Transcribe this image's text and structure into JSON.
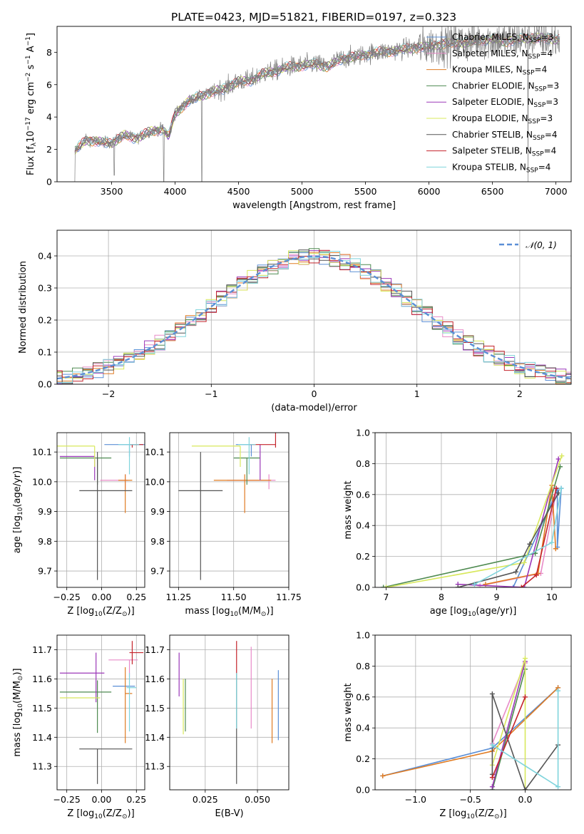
{
  "figure": {
    "title": "PLATE=0423, MJD=51821, FIBERID=0197, z=0.323",
    "models": [
      {
        "imf": "Chabrier",
        "lib": "MILES",
        "nssp": 3,
        "color": "#5b8fd6"
      },
      {
        "imf": "Salpeter",
        "lib": "MILES",
        "nssp": 4,
        "color": "#e88bc8"
      },
      {
        "imf": "Kroupa",
        "lib": "MILES",
        "nssp": 4,
        "color": "#e07b22"
      },
      {
        "imf": "Chabrier",
        "lib": "ELODIE",
        "nssp": 3,
        "color": "#4e8a50"
      },
      {
        "imf": "Salpeter",
        "lib": "ELODIE",
        "nssp": 3,
        "color": "#9b38b8"
      },
      {
        "imf": "Kroupa",
        "lib": "ELODIE",
        "nssp": 3,
        "color": "#d8e85c"
      },
      {
        "imf": "Chabrier",
        "lib": "STELIB",
        "nssp": 4,
        "color": "#555555"
      },
      {
        "imf": "Salpeter",
        "lib": "STELIB",
        "nssp": 4,
        "color": "#c4232b"
      },
      {
        "imf": "Kroupa",
        "lib": "STELIB",
        "nssp": 4,
        "color": "#7fd4dc"
      }
    ],
    "data_color": "#808080",
    "nssp_label": "N",
    "nssp_sub": "SSP"
  },
  "chart_data": [
    {
      "id": "spectrum",
      "type": "line",
      "xlabel": "wavelength [Angstrom, rest frame]",
      "ylabel_parts": [
        "Flux [f",
        "λ",
        "10",
        "−17",
        " erg cm",
        "−2",
        " s",
        "−1",
        " A",
        "−1",
        "]"
      ],
      "xlim": [
        3070,
        7120
      ],
      "ylim": [
        0,
        9.6
      ],
      "xticks": [
        3500,
        4000,
        4500,
        5000,
        5500,
        6000,
        6500,
        7000
      ],
      "yticks": [
        0,
        2,
        4,
        6,
        8
      ],
      "continuum": [
        [
          3210,
          1.9
        ],
        [
          3300,
          2.6
        ],
        [
          3400,
          2.5
        ],
        [
          3500,
          2.4
        ],
        [
          3600,
          2.9
        ],
        [
          3700,
          2.7
        ],
        [
          3800,
          3.1
        ],
        [
          3900,
          3.3
        ],
        [
          3950,
          2.8
        ],
        [
          4000,
          4.2
        ],
        [
          4100,
          5.0
        ],
        [
          4200,
          5.3
        ],
        [
          4300,
          5.6
        ],
        [
          4400,
          5.8
        ],
        [
          4500,
          6.2
        ],
        [
          4600,
          6.3
        ],
        [
          4700,
          6.7
        ],
        [
          4800,
          6.9
        ],
        [
          4900,
          7.1
        ],
        [
          5000,
          7.2
        ],
        [
          5100,
          7.3
        ],
        [
          5200,
          7.1
        ],
        [
          5300,
          7.6
        ],
        [
          5400,
          7.7
        ],
        [
          5500,
          7.9
        ],
        [
          5600,
          8.0
        ],
        [
          5700,
          8.1
        ],
        [
          5800,
          8.2
        ],
        [
          5900,
          8.3
        ],
        [
          6000,
          8.4
        ],
        [
          6100,
          8.5
        ],
        [
          6200,
          8.6
        ],
        [
          6300,
          8.6
        ],
        [
          6400,
          8.8
        ],
        [
          6500,
          8.8
        ],
        [
          6600,
          8.7
        ],
        [
          6700,
          8.8
        ],
        [
          6800,
          8.9
        ],
        [
          6900,
          8.9
        ],
        [
          7000,
          8.8
        ]
      ],
      "dips": [
        [
          3210,
          0
        ],
        [
          3520,
          0.4
        ],
        [
          3910,
          0
        ],
        [
          4210,
          0
        ],
        [
          6780,
          0
        ]
      ]
    },
    {
      "id": "residuals",
      "type": "line",
      "xlabel": "(data-model)/error",
      "ylabel": "Normed distribution",
      "xlim": [
        -2.5,
        2.5
      ],
      "ylim": [
        0,
        0.48
      ],
      "xticks": [
        -2,
        -1,
        0,
        1,
        2
      ],
      "yticks": [
        0.0,
        0.1,
        0.2,
        0.3,
        0.4
      ],
      "legend": {
        "label": "𝒩(0, 1)",
        "position": "top-right"
      },
      "bin_width": 0.1
    },
    {
      "id": "age-vs-Z",
      "type": "scatter",
      "xlabel_parts": [
        "Z [log",
        "10",
        "(Z/Z",
        "⊙",
        ")]"
      ],
      "ylabel_parts": [
        "age  [log",
        "10",
        "(age/yr)]"
      ],
      "xlim": [
        -0.32,
        0.31
      ],
      "ylim": [
        9.645,
        10.165
      ],
      "xticks": [
        -0.25,
        0.0,
        0.25
      ],
      "yticks": [
        9.7,
        9.8,
        9.9,
        10.0,
        10.1
      ],
      "points": [
        {
          "x": 0.2,
          "y": 10.125,
          "xe": [
            0.18,
            0.18
          ],
          "ye": [
            0.04,
            0.0
          ]
        },
        {
          "x": 0.17,
          "y": 10.005,
          "xe": [
            0.18,
            0.02
          ],
          "ye": [
            0.03,
            0.02
          ]
        },
        {
          "x": 0.17,
          "y": 10.005,
          "xe": [
            0.05,
            0.05
          ],
          "ye": [
            0.11,
            0.02
          ]
        },
        {
          "x": -0.03,
          "y": 10.08,
          "xe": [
            0.27,
            0.1
          ],
          "ye": [
            0.09,
            0.0
          ]
        },
        {
          "x": -0.05,
          "y": 10.085,
          "xe": [
            0.25,
            0.0
          ],
          "ye": [
            0.08,
            0.0
          ]
        },
        {
          "x": -0.05,
          "y": 10.12,
          "xe": [
            0.27,
            0.0
          ],
          "ye": [
            0.07,
            0.0
          ]
        },
        {
          "x": -0.03,
          "y": 9.97,
          "xe": [
            0.13,
            0.25
          ],
          "ye": [
            0.3,
            0.13
          ]
        },
        {
          "x": 0.22,
          "y": 10.125,
          "xe": [
            0.02,
            0.08
          ],
          "ye": [
            0.01,
            0.0
          ]
        },
        {
          "x": 0.2,
          "y": 10.125,
          "xe": [
            0.08,
            0.07
          ],
          "ye": [
            0.1,
            0.025
          ]
        }
      ]
    },
    {
      "id": "age-vs-mass",
      "type": "scatter",
      "xlabel_parts": [
        "mass [log",
        "10",
        "(M/M",
        "⊙",
        ")]"
      ],
      "xlim": [
        11.21,
        11.75
      ],
      "ylim": [
        9.645,
        10.165
      ],
      "xticks": [
        11.25,
        11.5,
        11.75
      ],
      "yticks": [
        9.7,
        9.8,
        9.9,
        10.0,
        10.1
      ],
      "points": [
        {
          "x": 11.58,
          "y": 10.125,
          "xe": [
            0.07,
            0.0
          ],
          "ye": [
            0.04,
            0.0
          ]
        },
        {
          "x": 11.66,
          "y": 10.005,
          "xe": [
            0.19,
            0.03
          ],
          "ye": [
            0.03,
            0.02
          ]
        },
        {
          "x": 11.55,
          "y": 10.005,
          "xe": [
            0.14,
            0.12
          ],
          "ye": [
            0.11,
            0.02
          ]
        },
        {
          "x": 11.56,
          "y": 10.08,
          "xe": [
            0.06,
            0.06
          ],
          "ye": [
            0.09,
            0.0
          ]
        },
        {
          "x": 11.62,
          "y": 10.085,
          "xe": [
            0.0,
            0.0
          ],
          "ye": [
            0.08,
            0.04
          ]
        },
        {
          "x": 11.53,
          "y": 10.12,
          "xe": [
            0.22,
            0.0
          ],
          "ye": [
            0.07,
            0.0
          ]
        },
        {
          "x": 11.35,
          "y": 9.97,
          "xe": [
            0.1,
            0.1
          ],
          "ye": [
            0.3,
            0.13
          ]
        },
        {
          "x": 11.69,
          "y": 10.125,
          "xe": [
            0.12,
            0.0
          ],
          "ye": [
            0.01,
            0.04
          ]
        },
        {
          "x": 11.57,
          "y": 10.125,
          "xe": [
            0.05,
            0.03
          ],
          "ye": [
            0.1,
            0.025
          ]
        }
      ]
    },
    {
      "id": "weight-vs-age",
      "type": "line",
      "xlabel_parts": [
        "age  [log",
        "10",
        "(age/yr)]"
      ],
      "ylabel": "mass weight",
      "xlim": [
        6.8,
        10.35
      ],
      "ylim": [
        0,
        1.0
      ],
      "xticks": [
        7,
        8,
        9,
        10
      ],
      "yticks": [
        0.0,
        0.2,
        0.4,
        0.6,
        0.8,
        1.0
      ],
      "series": [
        [
          [
            9.3,
            0.0
          ],
          [
            10.1,
            0.63
          ],
          [
            10.1,
            0.26
          ],
          [
            10.17,
            0.64
          ]
        ],
        [
          [
            8.7,
            0.01
          ],
          [
            9.8,
            0.09
          ],
          [
            10.07,
            0.6
          ]
        ],
        [
          [
            8.8,
            0.02
          ],
          [
            9.75,
            0.09
          ],
          [
            10.0,
            0.66
          ],
          [
            10.07,
            0.25
          ]
        ],
        [
          [
            6.95,
            0.0
          ],
          [
            9.7,
            0.22
          ],
          [
            10.15,
            0.78
          ]
        ],
        [
          [
            8.3,
            0.02
          ],
          [
            9.5,
            0.0
          ],
          [
            10.12,
            0.83
          ]
        ],
        [
          [
            7.0,
            0.0
          ],
          [
            9.5,
            0.16
          ],
          [
            10.18,
            0.85
          ]
        ],
        [
          [
            8.3,
            0.0
          ],
          [
            9.35,
            0.1
          ],
          [
            9.6,
            0.28
          ],
          [
            10.12,
            0.61
          ]
        ],
        [
          [
            9.45,
            0.0
          ],
          [
            9.72,
            0.08
          ],
          [
            10.08,
            0.64
          ]
        ],
        [
          [
            8.6,
            0.02
          ],
          [
            10.0,
            0.29
          ],
          [
            10.17,
            0.64
          ]
        ]
      ]
    },
    {
      "id": "mass-vs-Z",
      "type": "scatter",
      "xlabel_parts": [
        "Z [log",
        "10",
        "(Z/Z",
        "⊙",
        ")]"
      ],
      "ylabel_parts": [
        "mass [log",
        "10",
        "(M/M",
        "⊙",
        ")]"
      ],
      "xlim": [
        -0.32,
        0.31
      ],
      "ylim": [
        11.22,
        11.75
      ],
      "xticks": [
        -0.25,
        0.0,
        0.25
      ],
      "yticks": [
        11.3,
        11.4,
        11.5,
        11.6,
        11.7
      ],
      "points": [
        {
          "x": 0.2,
          "y": 11.575,
          "xe": [
            0.12,
            0.04
          ],
          "ye": [
            0.0,
            0.0
          ]
        },
        {
          "x": 0.2,
          "y": 11.665,
          "xe": [
            0.15,
            0.06
          ],
          "ye": [
            0.06,
            0.0
          ]
        },
        {
          "x": 0.17,
          "y": 11.55,
          "xe": [
            0.0,
            0.05
          ],
          "ye": [
            0.17,
            0.09
          ]
        },
        {
          "x": -0.03,
          "y": 11.555,
          "xe": [
            0.27,
            0.1
          ],
          "ye": [
            0.14,
            0.04
          ]
        },
        {
          "x": -0.04,
          "y": 11.62,
          "xe": [
            0.26,
            0.06
          ],
          "ye": [
            0.1,
            0.07
          ]
        },
        {
          "x": -0.05,
          "y": 11.535,
          "xe": [
            0.25,
            0.04
          ],
          "ye": [
            0.0,
            0.0
          ]
        },
        {
          "x": -0.03,
          "y": 11.36,
          "xe": [
            0.13,
            0.25
          ],
          "ye": [
            0.12,
            0.0
          ]
        },
        {
          "x": 0.22,
          "y": 11.69,
          "xe": [
            0.02,
            0.08
          ],
          "ye": [
            0.04,
            0.04
          ]
        },
        {
          "x": 0.2,
          "y": 11.57,
          "xe": [
            0.02,
            0.05
          ],
          "ye": [
            0.15,
            0.05
          ]
        }
      ]
    },
    {
      "id": "mass-vs-ebv",
      "type": "scatter",
      "xlabel": "E(B-V)",
      "xlim": [
        0.008,
        0.065
      ],
      "ylim": [
        11.22,
        11.75
      ],
      "xticks": [
        0.025,
        0.05
      ],
      "yticks": [
        11.3,
        11.4,
        11.5,
        11.6,
        11.7
      ],
      "points": [
        {
          "x": 0.06,
          "y": 11.58,
          "ye": [
            0.19,
            0.05
          ]
        },
        {
          "x": 0.047,
          "y": 11.67,
          "ye": [
            0.24,
            0.04
          ]
        },
        {
          "x": 0.057,
          "y": 11.55,
          "ye": [
            0.17,
            0.05
          ]
        },
        {
          "x": 0.0155,
          "y": 11.56,
          "ye": [
            0.14,
            0.04
          ]
        },
        {
          "x": 0.0125,
          "y": 11.62,
          "ye": [
            0.08,
            0.07
          ]
        },
        {
          "x": 0.0145,
          "y": 11.53,
          "ye": [
            0.12,
            0.07
          ]
        },
        {
          "x": 0.04,
          "y": 11.35,
          "ye": [
            0.11,
            0.27
          ]
        },
        {
          "x": 0.04,
          "y": 11.67,
          "ye": [
            0.05,
            0.06
          ]
        },
        {
          "x": 0.04,
          "y": 11.57,
          "ye": [
            0.14,
            0.05
          ]
        }
      ]
    },
    {
      "id": "weight-vs-Z",
      "type": "line",
      "xlabel_parts": [
        "Z [log",
        "10",
        "(Z/Z",
        "⊙",
        ")]"
      ],
      "ylabel": "mass weight",
      "xlim": [
        -1.37,
        0.42
      ],
      "ylim": [
        0,
        1.0
      ],
      "xticks": [
        -1.0,
        -0.5,
        0.0
      ],
      "yticks": [
        0.0,
        0.2,
        0.4,
        0.6,
        0.8,
        1.0
      ],
      "series": [
        [
          [
            -1.3,
            0.09
          ],
          [
            -0.3,
            0.27
          ],
          [
            0.3,
            0.66
          ]
        ],
        [
          [
            -0.3,
            0.3
          ],
          [
            0.0,
            0.82
          ]
        ],
        [
          [
            -1.3,
            0.09
          ],
          [
            -0.3,
            0.25
          ],
          [
            0.3,
            0.66
          ]
        ],
        [
          [
            -0.3,
            0.0
          ],
          [
            0.0,
            0.78
          ]
        ],
        [
          [
            -0.3,
            0.02
          ],
          [
            0.0,
            0.83
          ]
        ],
        [
          [
            -0.3,
            0.16
          ],
          [
            0.0,
            0.85
          ],
          [
            0.0,
            0.0
          ]
        ],
        [
          [
            -0.3,
            0.1
          ],
          [
            -0.3,
            0.62
          ],
          [
            0.0,
            0.0
          ],
          [
            0.3,
            0.29
          ]
        ],
        [
          [
            -0.3,
            0.08
          ],
          [
            0.0,
            0.6
          ]
        ],
        [
          [
            -0.3,
            0.29
          ],
          [
            0.3,
            0.02
          ],
          [
            0.3,
            0.64
          ]
        ]
      ]
    }
  ]
}
